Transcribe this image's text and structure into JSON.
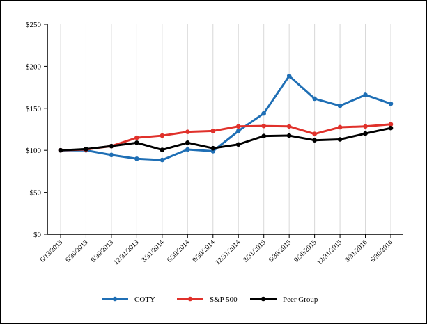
{
  "chart_data": {
    "type": "line",
    "categories": [
      "6/13/2013",
      "6/30/2013",
      "9/30/2013",
      "12/31/2013",
      "3/31/2014",
      "6/30/2014",
      "9/30/2014",
      "12/31/2014",
      "3/31/2015",
      "6/30/2015",
      "9/30/2015",
      "12/31/2015",
      "3/31/2016",
      "6/30/2016"
    ],
    "y_ticks": [
      "$0",
      "$50",
      "$100",
      "$150",
      "$200",
      "$250"
    ],
    "ylim": [
      0,
      250
    ],
    "grid": "vertical",
    "legend_position": "bottom",
    "series": [
      {
        "name": "COTY",
        "color": "#1f6fb5",
        "values": [
          100,
          100,
          94.5,
          90,
          88.5,
          101,
          99,
          123,
          144,
          188.5,
          161.5,
          153,
          166,
          155.5
        ]
      },
      {
        "name": "S&P 500",
        "color": "#e0312b",
        "values": [
          100,
          101,
          105,
          115,
          117.5,
          122,
          123,
          128.5,
          129,
          128.5,
          119.5,
          127.5,
          128.5,
          131
        ]
      },
      {
        "name": "Peer Group",
        "color": "#000000",
        "values": [
          100,
          101.5,
          105,
          109,
          100.5,
          109,
          102.5,
          107,
          117,
          117.5,
          112,
          113,
          120,
          126.5
        ]
      }
    ]
  }
}
